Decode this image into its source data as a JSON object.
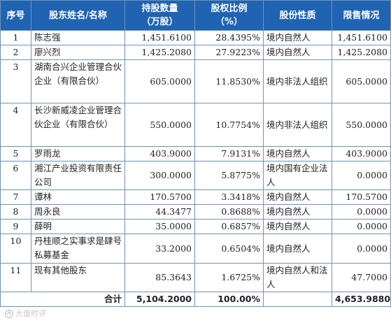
{
  "headers": {
    "idx": "序号",
    "name": "股东姓名/名称",
    "shares_line1": "持股数量",
    "shares_line2": "（万股）",
    "ratio_line1": "股权比例",
    "ratio_line2": "（%）",
    "nature": "股份性质",
    "restrict": "限售情况"
  },
  "rows": [
    {
      "idx": "1",
      "name": "陈志强",
      "shares": "1,451.6100",
      "ratio": "28.4395%",
      "nature": "境内自然人",
      "restrict": "1,451.6100"
    },
    {
      "idx": "2",
      "name": "廖兴烈",
      "shares": "1,425.2080",
      "ratio": "27.9223%",
      "nature": "境内自然人",
      "restrict": "1,425.2080"
    },
    {
      "idx": "3",
      "name": "湖南合兴企业管理合伙企业（有限合伙）",
      "shares": "605.0000",
      "ratio": "11.8530%",
      "nature": "境内非法人组织",
      "restrict": "605.0000"
    },
    {
      "idx": "4",
      "name": "长沙新威凌企业管理合伙企业（有限合伙）",
      "shares": "550.0000",
      "ratio": "10.7754%",
      "nature": "境内非法人组织",
      "restrict": "550.0000"
    },
    {
      "idx": "5",
      "name": "罗雨龙",
      "shares": "403.9000",
      "ratio": "7.9131%",
      "nature": "境内自然人",
      "restrict": "403.9000"
    },
    {
      "idx": "6",
      "name": "湘江产业投资有限责任公司",
      "shares": "300.0000",
      "ratio": "5.8775%",
      "nature": "境内国有企业法人",
      "restrict": "0.0000"
    },
    {
      "idx": "7",
      "name": "谭林",
      "shares": "170.5700",
      "ratio": "3.3418%",
      "nature": "境内自然人",
      "restrict": "170.5700"
    },
    {
      "idx": "8",
      "name": "周永良",
      "shares": "44.3477",
      "ratio": "0.8688%",
      "nature": "境内自然人",
      "restrict": "0.0000"
    },
    {
      "idx": "9",
      "name": "薛明",
      "shares": "35.0000",
      "ratio": "0.6857%",
      "nature": "境内自然人",
      "restrict": "0.0000"
    },
    {
      "idx": "10",
      "name": "丹桂顺之实事求是肆号私募基金",
      "shares": "33.2000",
      "ratio": "0.6504%",
      "nature": "境内自然人",
      "restrict": "0.0000"
    },
    {
      "idx": "11",
      "name": "现有其他股东",
      "shares": "85.3643",
      "ratio": "1.6725%",
      "nature": "境内自然人和法人",
      "restrict": "47.7000"
    }
  ],
  "total": {
    "label": "合计",
    "shares": "5,104.2000",
    "ratio": "100.00%",
    "restrict": "4,653.9880"
  },
  "watermark": {
    "text": "大盘时评"
  },
  "colors": {
    "header_bg": "#1f63b2",
    "header_text": "#ffffff",
    "border": "#6f93b8"
  }
}
